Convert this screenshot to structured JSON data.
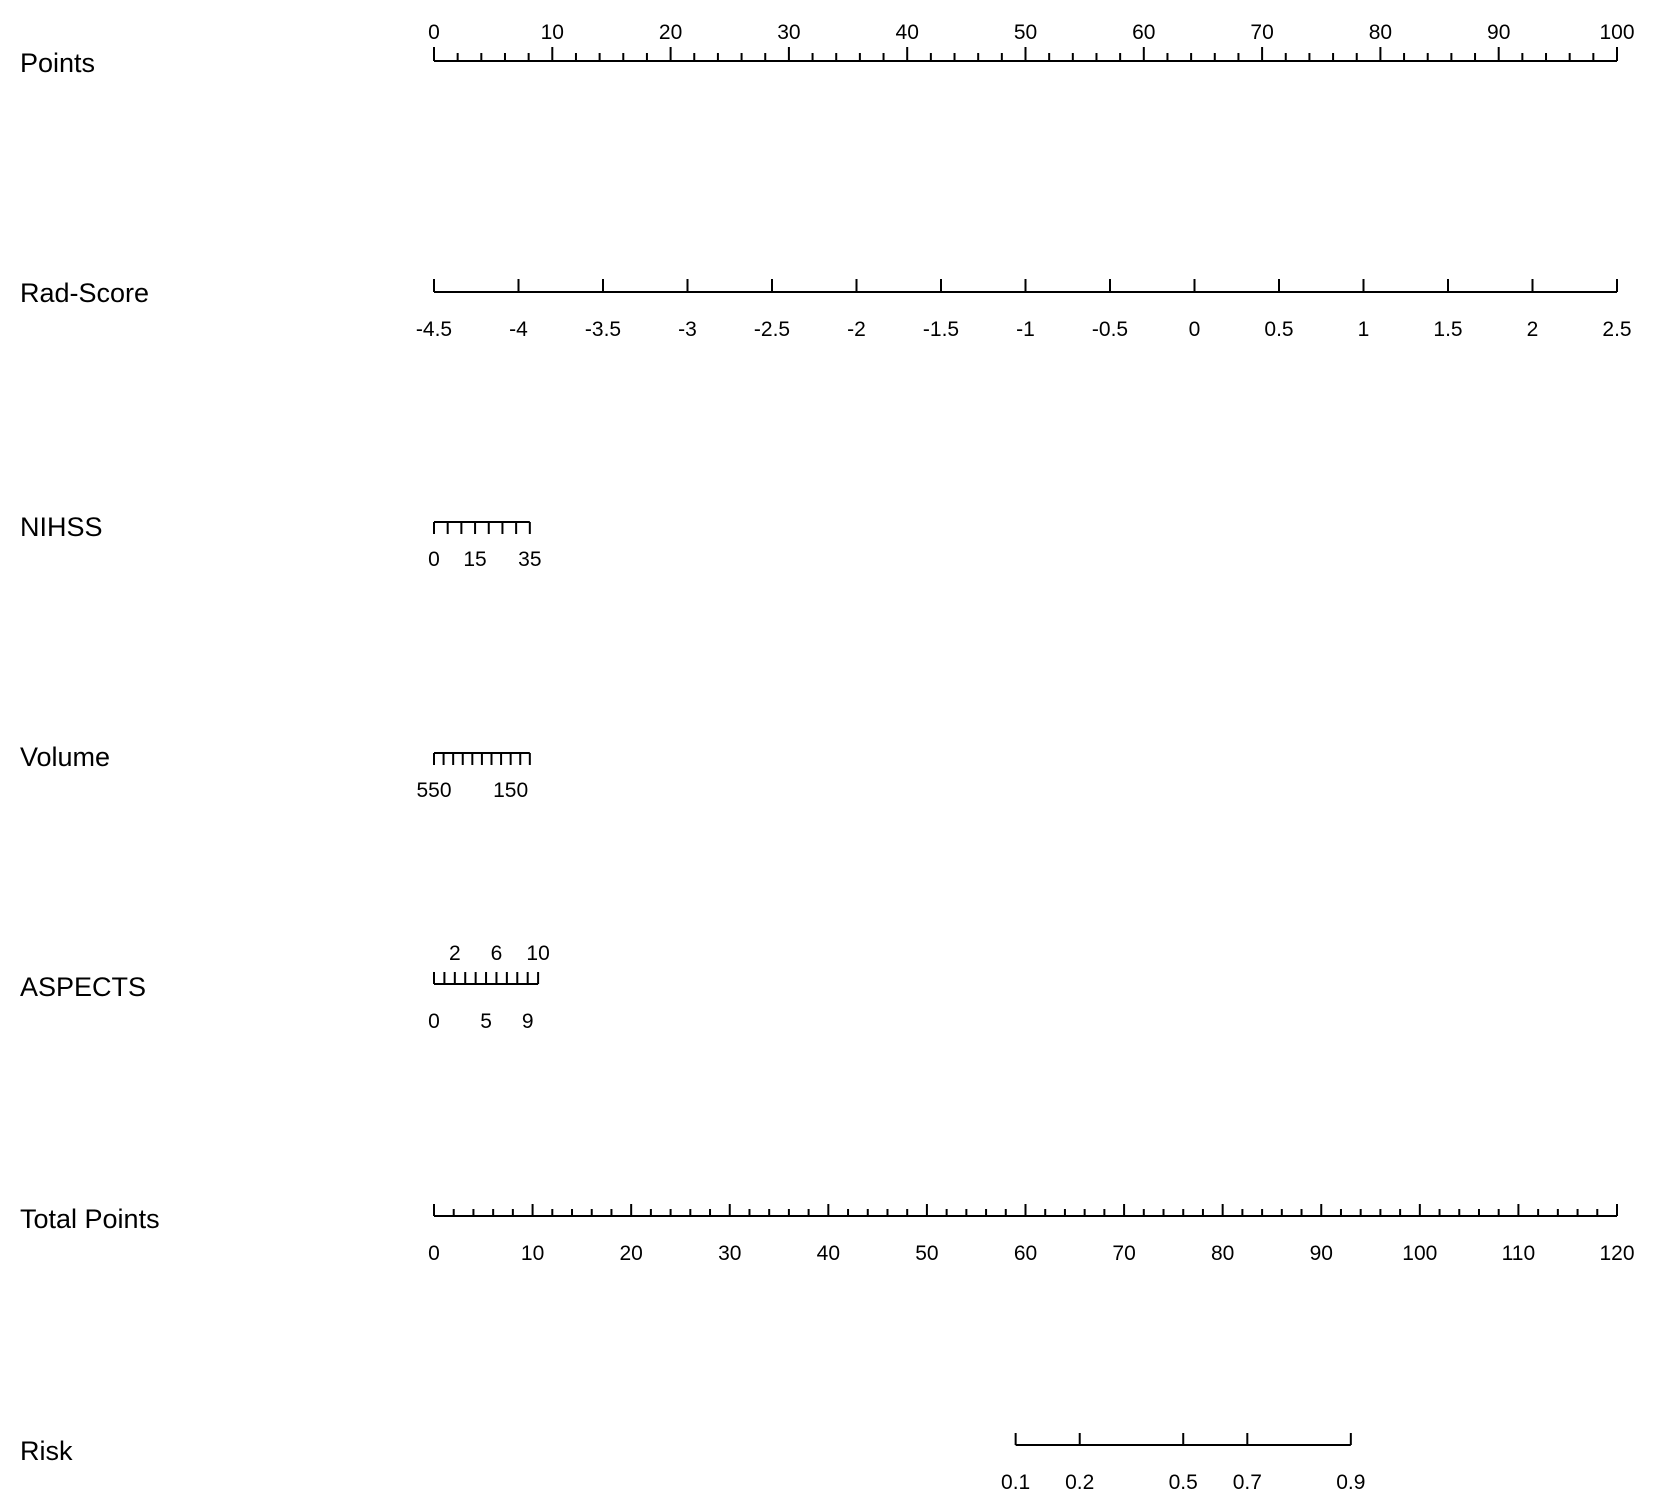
{
  "chart_data": {
    "type": "nomogram",
    "title": "",
    "rows": [
      {
        "name": "Points",
        "range": [
          0,
          100
        ],
        "labels": [
          {
            "text": "0",
            "value": 0
          },
          {
            "text": "10",
            "value": 10
          },
          {
            "text": "20",
            "value": 20
          },
          {
            "text": "30",
            "value": 30
          },
          {
            "text": "40",
            "value": 40
          },
          {
            "text": "50",
            "value": 50
          },
          {
            "text": "60",
            "value": 60
          },
          {
            "text": "70",
            "value": 70
          },
          {
            "text": "80",
            "value": 80
          },
          {
            "text": "90",
            "value": 90
          },
          {
            "text": "100",
            "value": 100
          }
        ]
      },
      {
        "name": "Rad-Score",
        "range": [
          -4.5,
          2.5
        ],
        "labels": [
          {
            "text": "-4.5",
            "value": -4.5
          },
          {
            "text": "-4",
            "value": -4
          },
          {
            "text": "-3.5",
            "value": -3.5
          },
          {
            "text": "-3",
            "value": -3
          },
          {
            "text": "-2.5",
            "value": -2.5
          },
          {
            "text": "-2",
            "value": -2
          },
          {
            "text": "-1.5",
            "value": -1.5
          },
          {
            "text": "-1",
            "value": -1
          },
          {
            "text": "-0.5",
            "value": -0.5
          },
          {
            "text": "0",
            "value": 0
          },
          {
            "text": "0.5",
            "value": 0.5
          },
          {
            "text": "1",
            "value": 1
          },
          {
            "text": "1.5",
            "value": 1.5
          },
          {
            "text": "2",
            "value": 2
          },
          {
            "text": "2.5",
            "value": 2.5
          }
        ]
      },
      {
        "name": "NIHSS",
        "range": [
          0,
          35
        ],
        "labels": [
          {
            "text": "0",
            "value": 0
          },
          {
            "text": "15",
            "value": 15
          },
          {
            "text": "35",
            "value": 35
          }
        ]
      },
      {
        "name": "Volume",
        "range": [
          550,
          50
        ],
        "labels": [
          {
            "text": "550",
            "value": 550
          },
          {
            "text": "150",
            "value": 150
          }
        ]
      },
      {
        "name": "ASPECTS",
        "range": [
          0,
          10
        ],
        "labels_above": [
          {
            "text": "2",
            "value": 2
          },
          {
            "text": "6",
            "value": 6
          },
          {
            "text": "10",
            "value": 10
          }
        ],
        "labels": [
          {
            "text": "0",
            "value": 0
          },
          {
            "text": "5",
            "value": 5
          },
          {
            "text": "9",
            "value": 9
          }
        ]
      },
      {
        "name": "Total Points",
        "range": [
          0,
          120
        ],
        "labels": [
          {
            "text": "0",
            "value": 0
          },
          {
            "text": "10",
            "value": 10
          },
          {
            "text": "20",
            "value": 20
          },
          {
            "text": "30",
            "value": 30
          },
          {
            "text": "40",
            "value": 40
          },
          {
            "text": "50",
            "value": 50
          },
          {
            "text": "60",
            "value": 60
          },
          {
            "text": "70",
            "value": 70
          },
          {
            "text": "80",
            "value": 80
          },
          {
            "text": "90",
            "value": 90
          },
          {
            "text": "100",
            "value": 100
          },
          {
            "text": "110",
            "value": 110
          },
          {
            "text": "120",
            "value": 120
          }
        ]
      },
      {
        "name": "Risk",
        "total_points_range": [
          59,
          93
        ],
        "labels": [
          {
            "text": "0.1",
            "value": 0.1,
            "total_points": 59
          },
          {
            "text": "0.2",
            "value": 0.2,
            "total_points": 65.5
          },
          {
            "text": "0.5",
            "value": 0.5,
            "total_points": 76
          },
          {
            "text": "0.7",
            "value": 0.7,
            "total_points": 82.5
          },
          {
            "text": "0.9",
            "value": 0.9,
            "total_points": 93
          }
        ]
      }
    ]
  }
}
